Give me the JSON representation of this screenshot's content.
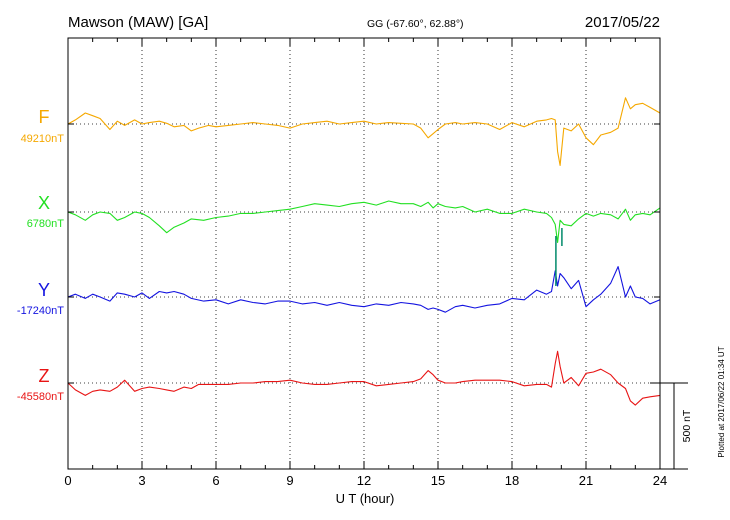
{
  "header": {
    "station": "Mawson (MAW)  [GA]",
    "coords": "GG (-67.60°,  62.88°)",
    "date": "2017/05/22"
  },
  "footer": {
    "plotted": "Plotted at 2017/06/22 01:34 UT"
  },
  "colors": {
    "F": "#f5a800",
    "X": "#22e022",
    "Y": "#1414e0",
    "Z": "#e81414",
    "spike": "#008a6a",
    "axis": "#000000"
  },
  "chart_data": {
    "type": "line",
    "xlabel": "U T (hour)",
    "xlim": [
      0,
      24
    ],
    "xticks": [
      0,
      3,
      6,
      9,
      12,
      15,
      18,
      21,
      24
    ],
    "scale_bar_label": "500 nT",
    "scale_bar_nT": 500,
    "series": [
      {
        "name": "F",
        "baseline_label": "49210nT",
        "baseline_nT": 49210,
        "x": [
          0,
          0.3,
          0.7,
          1.0,
          1.3,
          1.7,
          2.0,
          2.3,
          2.7,
          3.0,
          3.3,
          3.7,
          4.0,
          4.3,
          4.7,
          5.0,
          5.3,
          5.7,
          6.0,
          6.5,
          7.0,
          7.5,
          8.0,
          8.5,
          9.0,
          9.5,
          10.0,
          10.5,
          11.0,
          11.5,
          12.0,
          12.5,
          13.0,
          13.5,
          14.0,
          14.3,
          14.6,
          14.8,
          15.0,
          15.3,
          15.7,
          16.0,
          16.5,
          17.0,
          17.5,
          18.0,
          18.5,
          19.0,
          19.4,
          19.6,
          19.75,
          19.85,
          19.95,
          20.1,
          20.4,
          20.7,
          21.0,
          21.3,
          21.6,
          22.0,
          22.3,
          22.6,
          22.8,
          23.0,
          23.3,
          23.6,
          24.0
        ],
        "values": [
          0,
          30,
          80,
          60,
          40,
          -40,
          20,
          -10,
          30,
          0,
          10,
          20,
          5,
          -20,
          -10,
          -50,
          -30,
          -10,
          -20,
          -10,
          0,
          10,
          0,
          -10,
          -30,
          0,
          10,
          20,
          0,
          10,
          20,
          0,
          10,
          5,
          0,
          -30,
          -100,
          -70,
          -40,
          0,
          10,
          0,
          10,
          0,
          -40,
          10,
          -20,
          20,
          30,
          40,
          30,
          -200,
          -300,
          -30,
          -50,
          0,
          -100,
          -150,
          -80,
          -60,
          -30,
          190,
          110,
          140,
          150,
          120,
          80
        ]
      },
      {
        "name": "X",
        "baseline_label": "6780nT",
        "baseline_nT": 6780,
        "x": [
          0,
          0.3,
          0.7,
          1.0,
          1.3,
          1.7,
          2.0,
          2.3,
          2.7,
          3.0,
          3.3,
          3.7,
          4.0,
          4.3,
          4.7,
          5.0,
          5.5,
          6.0,
          6.5,
          7.0,
          7.5,
          8.0,
          8.5,
          9.0,
          9.5,
          10.0,
          10.5,
          11.0,
          11.5,
          12.0,
          12.5,
          13.0,
          13.5,
          14.0,
          14.3,
          14.6,
          14.8,
          15.0,
          15.3,
          15.7,
          16.0,
          16.5,
          17.0,
          17.5,
          18.0,
          18.5,
          19.0,
          19.4,
          19.6,
          19.75,
          19.85,
          19.95,
          20.1,
          20.4,
          20.7,
          21.0,
          21.3,
          21.6,
          22.0,
          22.3,
          22.6,
          22.8,
          23.0,
          23.3,
          23.6,
          24.0
        ],
        "values": [
          0,
          -20,
          -60,
          -20,
          0,
          -10,
          -60,
          -40,
          0,
          -10,
          -40,
          -100,
          -150,
          -110,
          -80,
          -50,
          -60,
          -40,
          -30,
          -10,
          -10,
          0,
          10,
          20,
          40,
          60,
          50,
          40,
          60,
          70,
          50,
          80,
          60,
          60,
          40,
          70,
          30,
          60,
          40,
          30,
          40,
          0,
          20,
          -10,
          -10,
          20,
          0,
          -10,
          -40,
          -90,
          -220,
          -60,
          -90,
          -100,
          -50,
          -10,
          -30,
          -10,
          -20,
          -50,
          20,
          -60,
          -20,
          -10,
          -20,
          30
        ]
      },
      {
        "name": "Y",
        "baseline_label": "-17240nT",
        "baseline_nT": -17240,
        "x": [
          0,
          0.3,
          0.7,
          1.0,
          1.3,
          1.7,
          2.0,
          2.3,
          2.7,
          3.0,
          3.3,
          3.7,
          4.0,
          4.3,
          4.7,
          5.0,
          5.5,
          6.0,
          6.5,
          7.0,
          7.5,
          8.0,
          8.5,
          9.0,
          9.5,
          10.0,
          10.5,
          11.0,
          11.5,
          12.0,
          12.5,
          13.0,
          13.5,
          14.0,
          14.3,
          14.6,
          14.8,
          15.0,
          15.3,
          15.7,
          16.0,
          16.5,
          17.0,
          17.5,
          18.0,
          18.5,
          19.0,
          19.4,
          19.6,
          19.75,
          19.85,
          19.95,
          20.1,
          20.4,
          20.7,
          21.0,
          21.3,
          21.6,
          22.0,
          22.3,
          22.6,
          22.8,
          23.0,
          23.3,
          23.6,
          24.0
        ],
        "values": [
          0,
          20,
          -10,
          20,
          0,
          -30,
          30,
          20,
          0,
          30,
          -10,
          40,
          30,
          40,
          20,
          -10,
          -30,
          -20,
          -50,
          -20,
          -40,
          -50,
          -30,
          -30,
          -50,
          -40,
          -60,
          -40,
          -60,
          -70,
          -50,
          -60,
          -40,
          -50,
          -60,
          -90,
          -80,
          -90,
          -110,
          -70,
          -60,
          -80,
          -60,
          -50,
          -10,
          -20,
          50,
          20,
          40,
          190,
          80,
          170,
          140,
          60,
          120,
          -70,
          -20,
          20,
          100,
          220,
          0,
          80,
          0,
          -10,
          -50,
          -20
        ]
      },
      {
        "name": "Z",
        "baseline_label": "-45580nT",
        "baseline_nT": -45580,
        "x": [
          0,
          0.3,
          0.7,
          1.0,
          1.3,
          1.7,
          2.0,
          2.3,
          2.7,
          3.0,
          3.3,
          3.7,
          4.0,
          4.3,
          4.7,
          5.0,
          5.3,
          5.7,
          6.0,
          6.5,
          7.0,
          7.5,
          8.0,
          8.5,
          9.0,
          9.5,
          10.0,
          10.5,
          11.0,
          11.5,
          12.0,
          12.5,
          13.0,
          13.5,
          14.0,
          14.3,
          14.6,
          14.8,
          15.0,
          15.3,
          15.7,
          16.0,
          16.5,
          17.0,
          17.5,
          18.0,
          18.5,
          19.0,
          19.4,
          19.6,
          19.75,
          19.85,
          19.95,
          20.1,
          20.4,
          20.7,
          21.0,
          21.3,
          21.6,
          22.0,
          22.3,
          22.6,
          22.8,
          23.0,
          23.3,
          23.6,
          24.0
        ],
        "values": [
          0,
          -50,
          -90,
          -60,
          -50,
          -60,
          -30,
          20,
          -60,
          -40,
          -30,
          -40,
          -50,
          -60,
          -30,
          -40,
          -10,
          -10,
          -10,
          -10,
          0,
          0,
          10,
          10,
          20,
          0,
          -10,
          -10,
          0,
          10,
          10,
          -20,
          -10,
          0,
          10,
          30,
          90,
          60,
          20,
          0,
          0,
          10,
          20,
          20,
          20,
          10,
          -20,
          -10,
          -10,
          -30,
          140,
          230,
          120,
          0,
          40,
          -20,
          70,
          80,
          100,
          60,
          0,
          -40,
          -130,
          -160,
          -110,
          -100,
          -90
        ]
      }
    ],
    "grid": true
  }
}
